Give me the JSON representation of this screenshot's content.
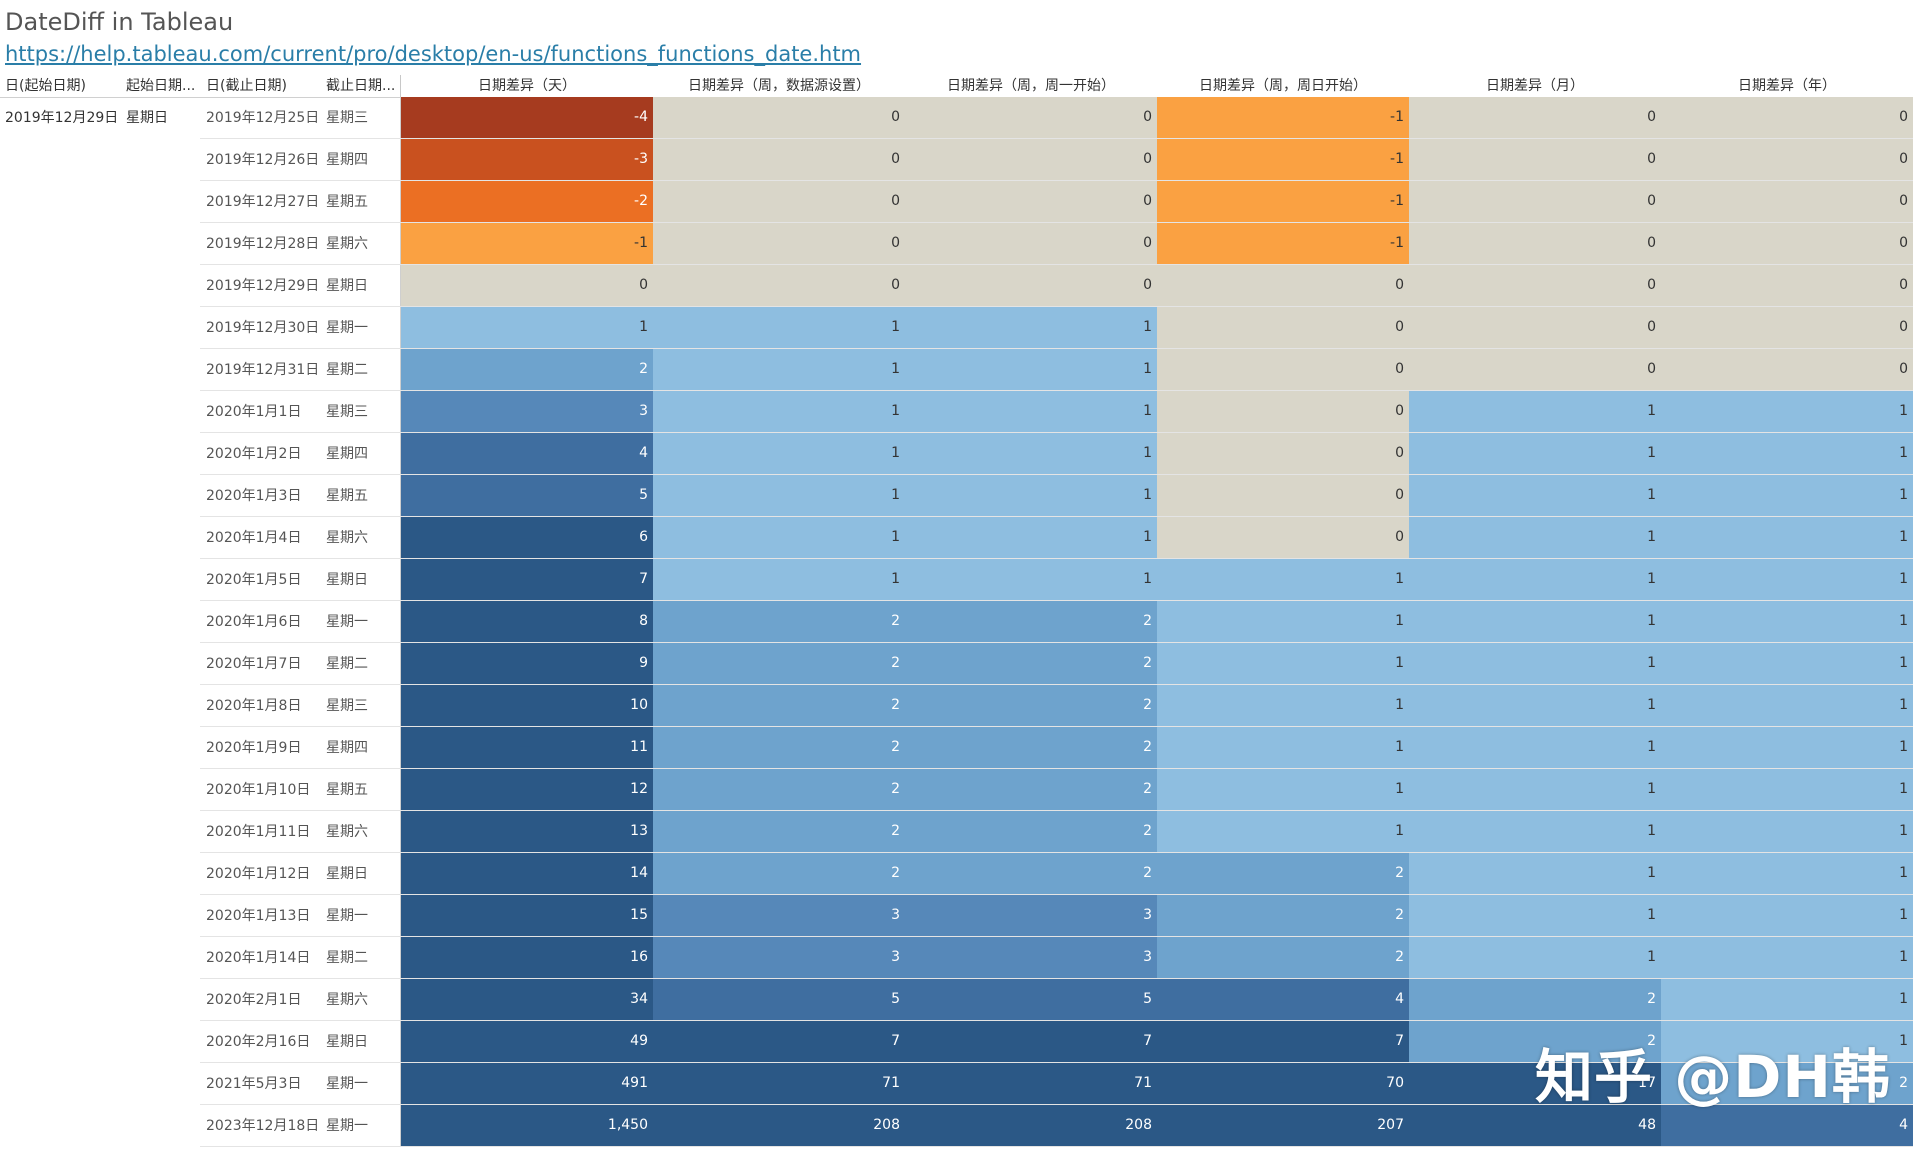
{
  "title": "DateDiff in Tableau",
  "link": "https://help.tableau.com/current/pro/desktop/en-us/functions_functions_date.htm",
  "headers": {
    "start_day": "日(起始日期)",
    "start_dow": "起始日期...",
    "end_day": "日(截止日期)",
    "end_dow": "截止日期...",
    "metrics": [
      "日期差异（天）",
      "日期差异（周，数据源设置）",
      "日期差异（周，周一开始）",
      "日期差异（周，周日开始）",
      "日期差异（月）",
      "日期差异（年）"
    ]
  },
  "start": {
    "date": "2019年12月29日",
    "dow": "星期日"
  },
  "rows": [
    {
      "date": "2019年12月25日",
      "dow": "星期三",
      "values": [
        "-4",
        "0",
        "0",
        "-1",
        "0",
        "0"
      ]
    },
    {
      "date": "2019年12月26日",
      "dow": "星期四",
      "values": [
        "-3",
        "0",
        "0",
        "-1",
        "0",
        "0"
      ]
    },
    {
      "date": "2019年12月27日",
      "dow": "星期五",
      "values": [
        "-2",
        "0",
        "0",
        "-1",
        "0",
        "0"
      ]
    },
    {
      "date": "2019年12月28日",
      "dow": "星期六",
      "values": [
        "-1",
        "0",
        "0",
        "-1",
        "0",
        "0"
      ]
    },
    {
      "date": "2019年12月29日",
      "dow": "星期日",
      "values": [
        "0",
        "0",
        "0",
        "0",
        "0",
        "0"
      ]
    },
    {
      "date": "2019年12月30日",
      "dow": "星期一",
      "values": [
        "1",
        "1",
        "1",
        "0",
        "0",
        "0"
      ]
    },
    {
      "date": "2019年12月31日",
      "dow": "星期二",
      "values": [
        "2",
        "1",
        "1",
        "0",
        "0",
        "0"
      ]
    },
    {
      "date": "2020年1月1日",
      "dow": "星期三",
      "values": [
        "3",
        "1",
        "1",
        "0",
        "1",
        "1"
      ]
    },
    {
      "date": "2020年1月2日",
      "dow": "星期四",
      "values": [
        "4",
        "1",
        "1",
        "0",
        "1",
        "1"
      ]
    },
    {
      "date": "2020年1月3日",
      "dow": "星期五",
      "values": [
        "5",
        "1",
        "1",
        "0",
        "1",
        "1"
      ]
    },
    {
      "date": "2020年1月4日",
      "dow": "星期六",
      "values": [
        "6",
        "1",
        "1",
        "0",
        "1",
        "1"
      ]
    },
    {
      "date": "2020年1月5日",
      "dow": "星期日",
      "values": [
        "7",
        "1",
        "1",
        "1",
        "1",
        "1"
      ]
    },
    {
      "date": "2020年1月6日",
      "dow": "星期一",
      "values": [
        "8",
        "2",
        "2",
        "1",
        "1",
        "1"
      ]
    },
    {
      "date": "2020年1月7日",
      "dow": "星期二",
      "values": [
        "9",
        "2",
        "2",
        "1",
        "1",
        "1"
      ]
    },
    {
      "date": "2020年1月8日",
      "dow": "星期三",
      "values": [
        "10",
        "2",
        "2",
        "1",
        "1",
        "1"
      ]
    },
    {
      "date": "2020年1月9日",
      "dow": "星期四",
      "values": [
        "11",
        "2",
        "2",
        "1",
        "1",
        "1"
      ]
    },
    {
      "date": "2020年1月10日",
      "dow": "星期五",
      "values": [
        "12",
        "2",
        "2",
        "1",
        "1",
        "1"
      ]
    },
    {
      "date": "2020年1月11日",
      "dow": "星期六",
      "values": [
        "13",
        "2",
        "2",
        "1",
        "1",
        "1"
      ]
    },
    {
      "date": "2020年1月12日",
      "dow": "星期日",
      "values": [
        "14",
        "2",
        "2",
        "2",
        "1",
        "1"
      ]
    },
    {
      "date": "2020年1月13日",
      "dow": "星期一",
      "values": [
        "15",
        "3",
        "3",
        "2",
        "1",
        "1"
      ]
    },
    {
      "date": "2020年1月14日",
      "dow": "星期二",
      "values": [
        "16",
        "3",
        "3",
        "2",
        "1",
        "1"
      ]
    },
    {
      "date": "2020年2月1日",
      "dow": "星期六",
      "values": [
        "34",
        "5",
        "5",
        "4",
        "2",
        "1"
      ]
    },
    {
      "date": "2020年2月16日",
      "dow": "星期日",
      "values": [
        "49",
        "7",
        "7",
        "7",
        "2",
        "1"
      ]
    },
    {
      "date": "2021年5月3日",
      "dow": "星期一",
      "values": [
        "491",
        "71",
        "71",
        "70",
        "17",
        "2"
      ]
    },
    {
      "date": "2023年12月18日",
      "dow": "星期一",
      "values": [
        "1,450",
        "208",
        "208",
        "207",
        "48",
        "4"
      ]
    }
  ],
  "colors": {
    "neg4": "#a63b1f",
    "neg3": "#c9511f",
    "neg2": "#eb6f23",
    "neg1": "#faa142",
    "zero": "#d9d6c9",
    "p1": "#8ebee0",
    "p2": "#6ea3cd",
    "p3": "#5688b9",
    "p4": "#3f6ea0",
    "p5": "#2b5886",
    "text_dark": "#333333",
    "text_light": "#ffffff"
  },
  "watermark": "知乎 @DH韩"
}
